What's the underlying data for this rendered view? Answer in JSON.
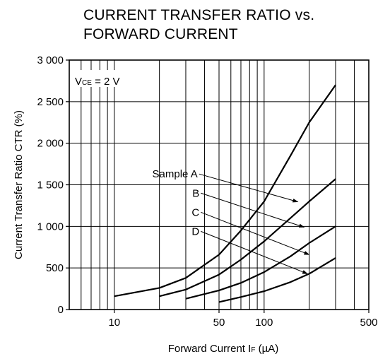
{
  "chart_data": {
    "type": "line",
    "title_line1": "CURRENT TRANSFER RATIO vs.",
    "title_line2": "FORWARD CURRENT",
    "xlabel": {
      "main": "Forward Current  I",
      "sub": "F",
      "unit": " (µA)"
    },
    "ylabel": "Current Transfer Ratio  CTR (%)",
    "xscale": "log",
    "xlim": [
      5,
      500
    ],
    "ylim": [
      0,
      3000
    ],
    "xticks": [
      {
        "value": 10,
        "label": "10"
      },
      {
        "value": 50,
        "label": "50"
      },
      {
        "value": 100,
        "label": "100"
      },
      {
        "value": 500,
        "label": "500"
      }
    ],
    "xgrid": [
      6,
      7,
      8,
      9,
      10,
      20,
      30,
      40,
      50,
      60,
      70,
      80,
      90,
      100,
      200,
      300,
      400
    ],
    "yticks": [
      {
        "value": 0,
        "label": "0"
      },
      {
        "value": 500,
        "label": "500"
      },
      {
        "value": 1000,
        "label": "1 000"
      },
      {
        "value": 1500,
        "label": "1 500"
      },
      {
        "value": 2000,
        "label": "2 000"
      },
      {
        "value": 2500,
        "label": "2 500"
      },
      {
        "value": 3000,
        "label": "3 000"
      }
    ],
    "grid": true,
    "annotation": {
      "main": "V",
      "sub": "CE",
      "rest": " = 2 V"
    },
    "series": [
      {
        "name": "Sample A",
        "x": [
          10,
          20,
          30,
          50,
          70,
          100,
          150,
          200,
          300
        ],
        "y": [
          160,
          260,
          380,
          660,
          950,
          1300,
          1850,
          2250,
          2700
        ]
      },
      {
        "name": "B",
        "x": [
          20,
          30,
          50,
          70,
          100,
          150,
          200,
          300
        ],
        "y": [
          160,
          240,
          420,
          600,
          820,
          1100,
          1300,
          1570
        ]
      },
      {
        "name": "C",
        "x": [
          30,
          50,
          70,
          100,
          150,
          200,
          300
        ],
        "y": [
          130,
          230,
          320,
          450,
          640,
          800,
          1000
        ]
      },
      {
        "name": "D",
        "x": [
          50,
          70,
          100,
          150,
          200,
          300
        ],
        "y": [
          90,
          150,
          220,
          330,
          430,
          620
        ]
      }
    ],
    "labels": [
      {
        "text": "Sample A",
        "x": 36,
        "y": 1630,
        "to": [
          168,
          1295
        ]
      },
      {
        "text": "B",
        "x": 37,
        "y": 1400,
        "to": [
          185,
          990
        ]
      },
      {
        "text": "C",
        "x": 37,
        "y": 1170,
        "to": [
          200,
          660
        ]
      },
      {
        "text": "D",
        "x": 37,
        "y": 940,
        "to": [
          195,
          430
        ]
      }
    ]
  }
}
